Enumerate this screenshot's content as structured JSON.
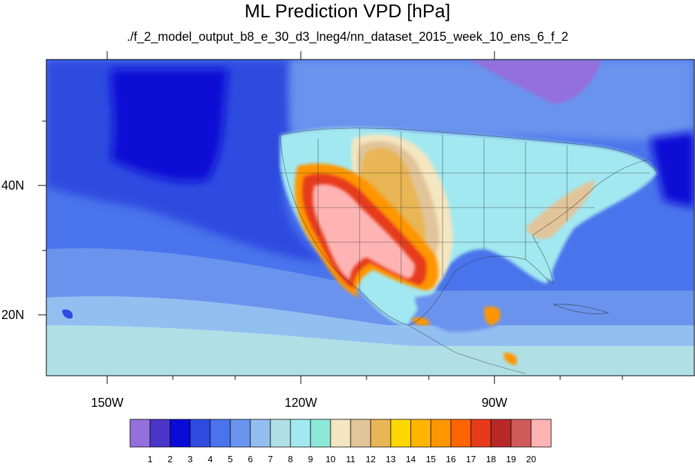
{
  "title": "ML Prediction VPD [hPa]",
  "subtitle": "./f_2_model_output_b8_e_30_d3_lneg4/nn_dataset_2015_week_10_ens_6_f_2",
  "map": {
    "lon_labels": [
      "150W",
      "120W",
      "90W"
    ],
    "lat_labels": [
      "40N",
      "20N"
    ]
  },
  "colorbar": {
    "labels": [
      "1",
      "2",
      "3",
      "4",
      "5",
      "6",
      "7",
      "8",
      "9",
      "10",
      "11",
      "12",
      "13",
      "14",
      "15",
      "16",
      "17",
      "18",
      "19",
      "20"
    ],
    "colors": [
      "#9370db",
      "#4a35c8",
      "#0a0ad6",
      "#2f4be0",
      "#4a74ec",
      "#6a93ee",
      "#92bff0",
      "#b0e0e6",
      "#a2e8f0",
      "#8ee8d8",
      "#f4e6c0",
      "#e2c49a",
      "#e8b654",
      "#ffd700",
      "#ffb400",
      "#ff9600",
      "#ff6400",
      "#e63a1a",
      "#b82828",
      "#d05a5a",
      "#ffb4b4"
    ]
  }
}
